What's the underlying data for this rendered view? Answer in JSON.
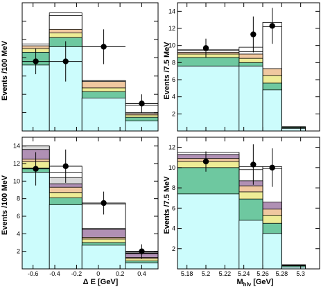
{
  "colors": {
    "signal": "#ccfcfc",
    "green": "#6ec8a0",
    "yellow": "#eeec96",
    "orange": "#f0c8a0",
    "purple": "#b090b4",
    "gray": "#d8d8d8",
    "white": "#ffffff"
  },
  "chart_data": [
    {
      "type": "bar",
      "stacked": true,
      "xlabel": "",
      "ylabel": "Events /100 MeV",
      "xlim": [
        -0.7,
        0.55
      ],
      "ylim": [
        0,
        14
      ],
      "bin_edges": [
        -0.7,
        -0.45,
        -0.15,
        0.25,
        0.55
      ],
      "yticks": [
        0,
        2,
        4,
        6,
        8,
        10,
        12,
        14
      ],
      "yticks_labeled": [],
      "xticks": [
        -0.6,
        -0.4,
        -0.2,
        0,
        0.2,
        0.4
      ],
      "xticks_labeled": [],
      "stack_tops": [
        {
          "color": "signal",
          "values": [
            7.2,
            9.2,
            3.6,
            1.1
          ]
        },
        {
          "color": "green",
          "values": [
            8.6,
            10.2,
            4.3,
            1.5
          ]
        },
        {
          "color": "yellow",
          "values": [
            9.0,
            10.7,
            4.7,
            1.75
          ]
        },
        {
          "color": "orange",
          "values": [
            9.3,
            11.1,
            5.4,
            1.9
          ]
        },
        {
          "color": "white",
          "values": [
            9.5,
            12.6,
            5.5,
            2.0
          ]
        },
        {
          "color": "white",
          "values": [
            9.5,
            12.9,
            5.5,
            2.8
          ]
        }
      ],
      "points": [
        {
          "x": -0.575,
          "y": 7.6,
          "xerr": 0.125,
          "yerr": 1.4
        },
        {
          "x": -0.3,
          "y": 7.6,
          "xerr": 0.15,
          "yerr": 2.2
        },
        {
          "x": 0.05,
          "y": 9.2,
          "xerr": 0.2,
          "yerr": 1.9
        },
        {
          "x": 0.4,
          "y": 3.0,
          "xerr": 0.15,
          "yerr": 1.0
        }
      ]
    },
    {
      "type": "bar",
      "stacked": true,
      "xlabel": "",
      "ylabel": "Events /7.5 MeV",
      "xlim": [
        5.17,
        5.32
      ],
      "ylim": [
        0,
        15
      ],
      "bin_edges": [
        5.17,
        5.235,
        5.26,
        5.28,
        5.305
      ],
      "yticks": [
        0,
        2,
        4,
        6,
        8,
        10,
        12,
        14
      ],
      "yticks_labeled": [
        2,
        4,
        6,
        8,
        10,
        12,
        14
      ],
      "xticks": [
        5.18,
        5.2,
        5.22,
        5.24,
        5.26,
        5.28,
        5.3
      ],
      "xticks_labeled": [],
      "stack_tops": [
        {
          "color": "signal",
          "values": [
            7.6,
            7.6,
            4.8,
            0.3
          ]
        },
        {
          "color": "green",
          "values": [
            8.6,
            8.0,
            5.6,
            0.4
          ]
        },
        {
          "color": "yellow",
          "values": [
            9.0,
            8.5,
            6.5,
            0.45
          ]
        },
        {
          "color": "orange",
          "values": [
            9.2,
            9.0,
            7.3,
            0.45
          ]
        },
        {
          "color": "white",
          "values": [
            9.4,
            9.3,
            12.2,
            0.5
          ]
        },
        {
          "color": "white",
          "values": [
            9.5,
            9.8,
            12.7,
            0.5
          ]
        }
      ],
      "points": [
        {
          "x": 5.2,
          "y": 9.7,
          "xerr": 0.0,
          "yerr": 1.1
        },
        {
          "x": 5.25,
          "y": 11.3,
          "xerr": 0.0,
          "yerr": 2.1
        },
        {
          "x": 5.27,
          "y": 12.3,
          "xerr": 0.0,
          "yerr": 2.1
        }
      ]
    },
    {
      "type": "bar",
      "stacked": true,
      "xlabel": "Δ E [GeV]",
      "ylabel": "Events /100 MeV",
      "xlim": [
        -0.7,
        0.55
      ],
      "ylim": [
        0,
        15
      ],
      "bin_edges": [
        -0.7,
        -0.45,
        -0.15,
        0.25,
        0.55
      ],
      "yticks": [
        0,
        2,
        4,
        6,
        8,
        10,
        12,
        14
      ],
      "yticks_labeled": [
        2,
        4,
        6,
        8,
        10,
        12,
        14
      ],
      "xticks": [
        -0.6,
        -0.4,
        -0.2,
        0,
        0.2,
        0.4
      ],
      "xticks_labeled": [
        -0.6,
        -0.4,
        -0.2,
        0,
        0.2,
        0.4
      ],
      "stack_tops": [
        {
          "color": "signal",
          "values": [
            11.0,
            7.3,
            2.7,
            0.7
          ]
        },
        {
          "color": "green",
          "values": [
            11.5,
            8.1,
            3.0,
            0.9
          ]
        },
        {
          "color": "yellow",
          "values": [
            12.2,
            8.7,
            3.4,
            1.15
          ]
        },
        {
          "color": "orange",
          "values": [
            12.5,
            9.3,
            3.6,
            1.3
          ]
        },
        {
          "color": "purple",
          "values": [
            13.6,
            9.7,
            4.5,
            1.75
          ]
        },
        {
          "color": "gray",
          "values": [
            14.0,
            10.4,
            4.6,
            1.8
          ]
        },
        {
          "color": "white",
          "values": [
            14.0,
            11.0,
            7.4,
            1.9
          ]
        },
        {
          "color": "white",
          "values": [
            14.0,
            11.7,
            7.5,
            2.0
          ]
        }
      ],
      "points": [
        {
          "x": -0.575,
          "y": 11.4,
          "xerr": 0.125,
          "yerr": 1.9
        },
        {
          "x": -0.3,
          "y": 11.7,
          "xerr": 0.15,
          "yerr": 1.9
        },
        {
          "x": 0.05,
          "y": 7.5,
          "xerr": 0.2,
          "yerr": 1.3
        },
        {
          "x": 0.4,
          "y": 2.0,
          "xerr": 0.15,
          "yerr": 0.8
        }
      ]
    },
    {
      "type": "bar",
      "stacked": true,
      "xlabel": "M_hlν [GeV]",
      "xlabel_main": "M",
      "xlabel_sub": "hlν",
      "xlabel_unit": "[GeV]",
      "ylabel": "Events /7.5 MeV",
      "xlim": [
        5.17,
        5.32
      ],
      "ylim": [
        0,
        13
      ],
      "bin_edges": [
        5.17,
        5.235,
        5.26,
        5.28,
        5.305
      ],
      "yticks": [
        0,
        2,
        4,
        6,
        8,
        10,
        12
      ],
      "yticks_labeled": [
        2,
        4,
        6,
        8,
        10,
        12
      ],
      "xticks": [
        5.18,
        5.2,
        5.22,
        5.24,
        5.26,
        5.28,
        5.3
      ],
      "xticks_labeled": [
        5.18,
        5.2,
        5.22,
        5.24,
        5.26,
        5.28,
        5.3
      ],
      "xtick_text": [
        "5.18",
        "5.2",
        "5.22",
        "5.24",
        "5.26",
        "5.28",
        "5.3"
      ],
      "stack_tops": [
        {
          "color": "signal",
          "values": [
            7.4,
            4.8,
            3.5,
            0.2
          ]
        },
        {
          "color": "green",
          "values": [
            10.0,
            6.9,
            4.5,
            0.3
          ]
        },
        {
          "color": "yellow",
          "values": [
            10.6,
            7.6,
            5.3,
            0.35
          ]
        },
        {
          "color": "orange",
          "values": [
            10.9,
            8.2,
            5.9,
            0.35
          ]
        },
        {
          "color": "purple",
          "values": [
            11.3,
            8.7,
            6.6,
            0.4
          ]
        },
        {
          "color": "white",
          "values": [
            11.5,
            9.8,
            9.9,
            0.4
          ]
        },
        {
          "color": "white",
          "values": [
            11.5,
            10.1,
            10.1,
            0.4
          ]
        }
      ],
      "points": [
        {
          "x": 5.2,
          "y": 10.6,
          "xerr": 0.0,
          "yerr": 1.0
        },
        {
          "x": 5.25,
          "y": 10.3,
          "xerr": 0.0,
          "yerr": 2.0
        },
        {
          "x": 5.27,
          "y": 10.0,
          "xerr": 0.0,
          "yerr": 1.9
        }
      ]
    }
  ]
}
